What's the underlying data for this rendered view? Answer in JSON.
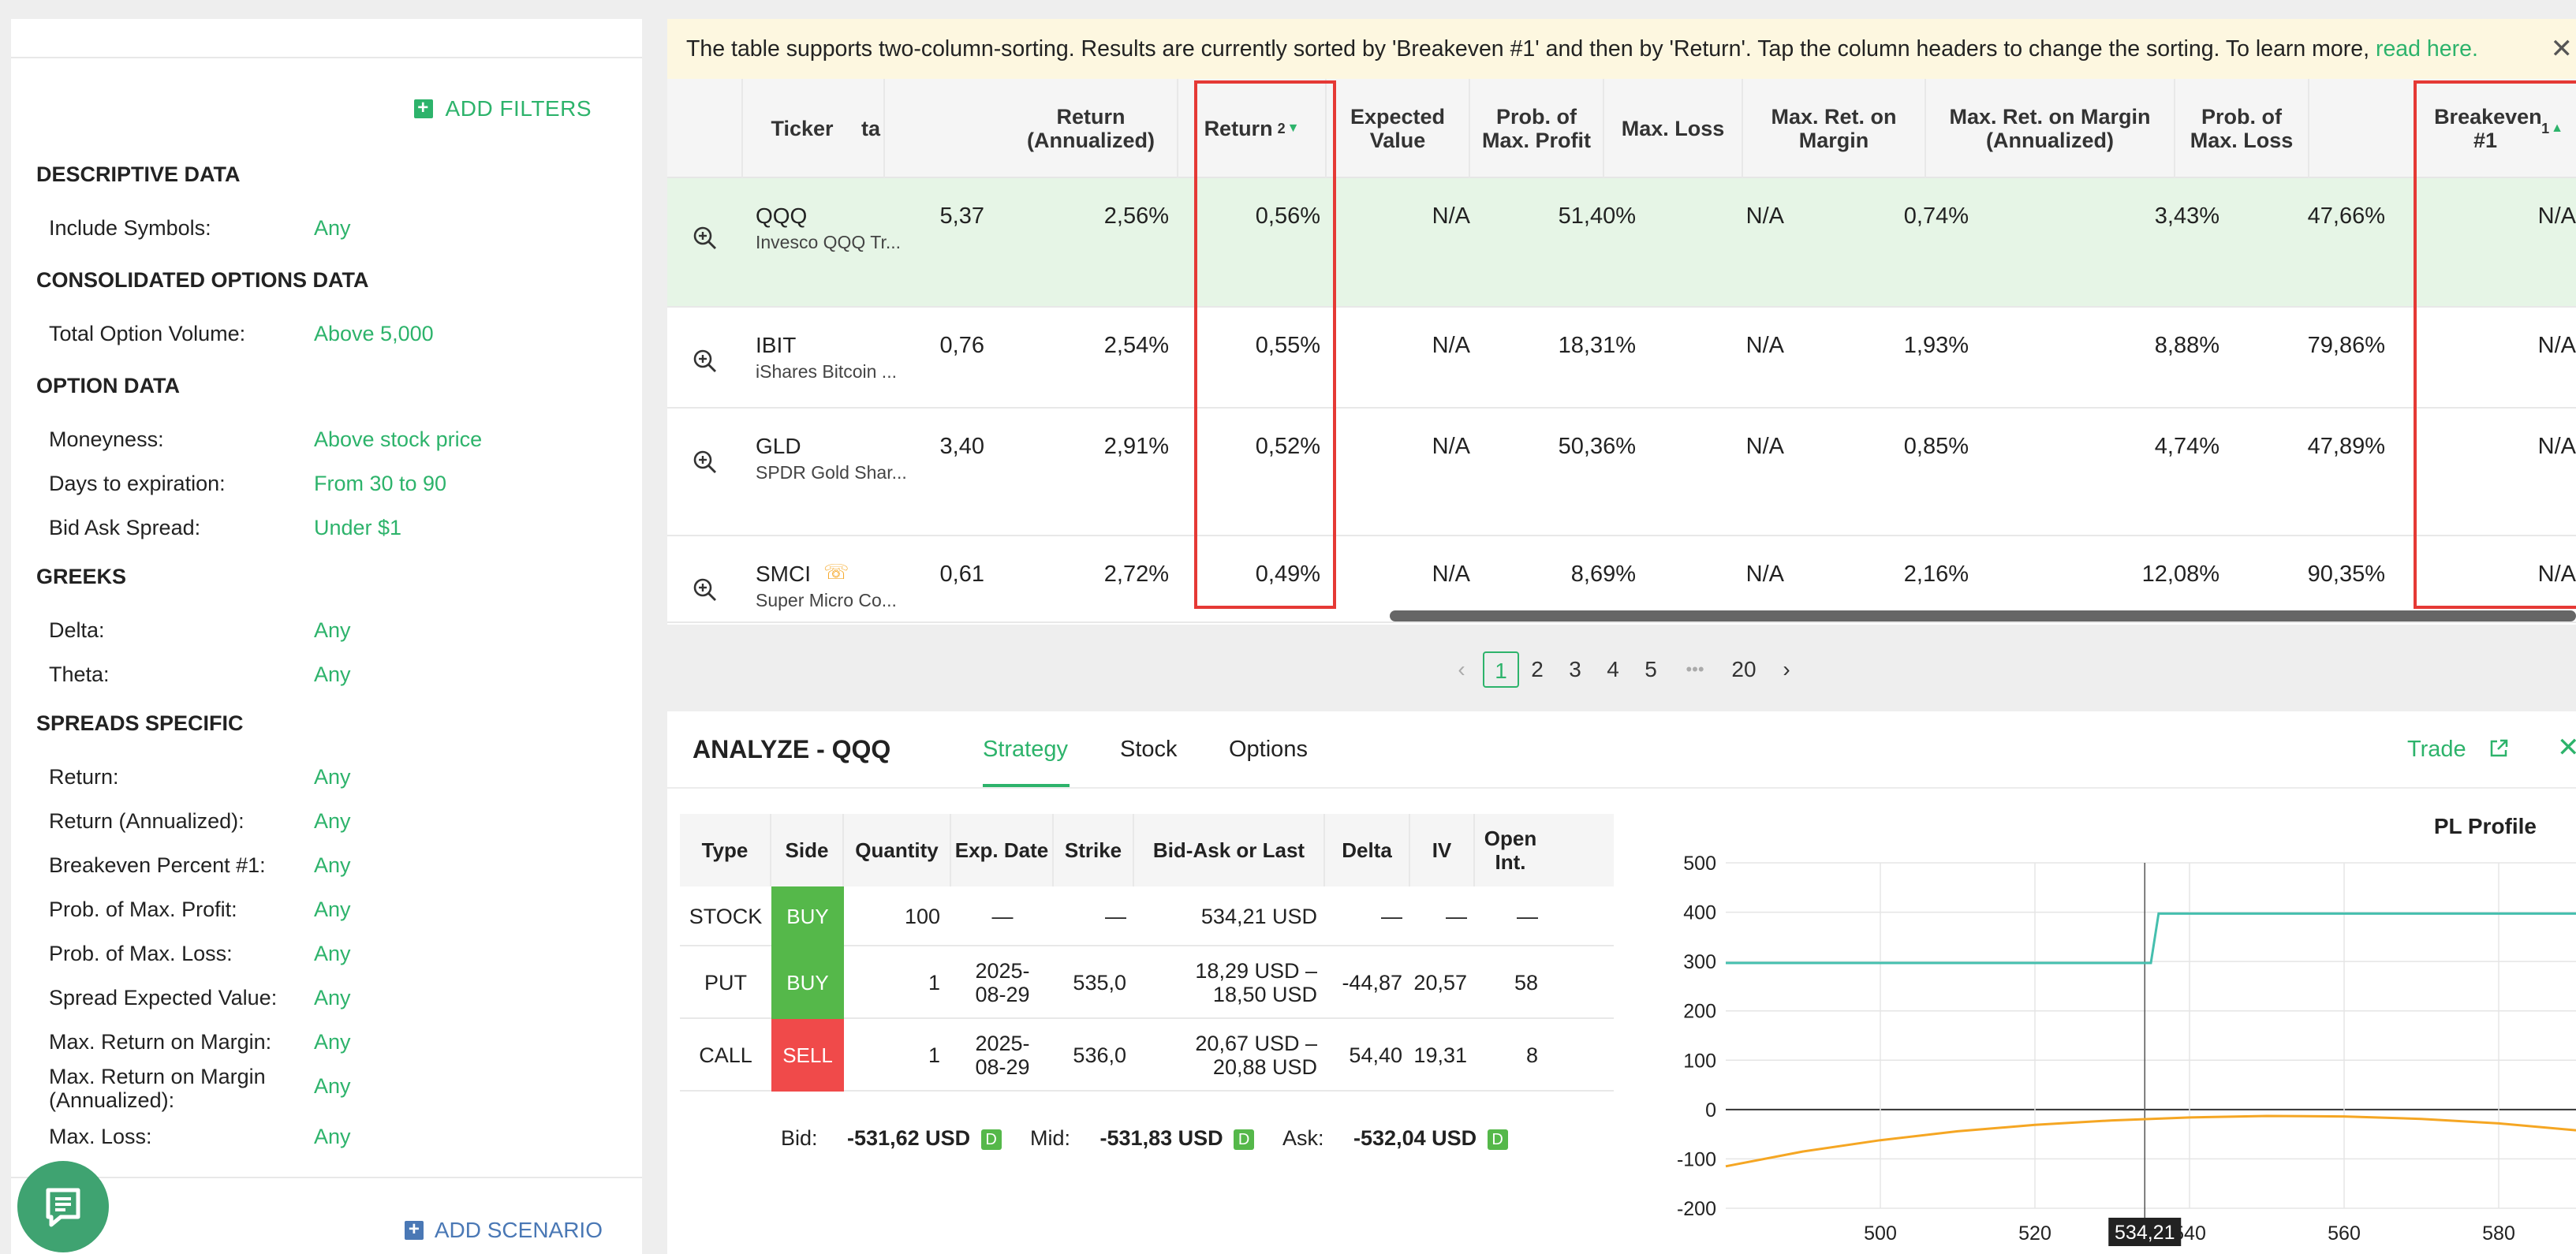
{
  "filters": {
    "add_filters": "ADD FILTERS",
    "add_scenario": "ADD SCENARIO",
    "sections": [
      {
        "title": "DESCRIPTIVE DATA",
        "rows": [
          {
            "label": "Include Symbols:",
            "value": "Any"
          }
        ]
      },
      {
        "title": "CONSOLIDATED OPTIONS DATA",
        "rows": [
          {
            "label": "Total Option Volume:",
            "value": "Above 5,000"
          }
        ]
      },
      {
        "title": "OPTION DATA",
        "rows": [
          {
            "label": "Moneyness:",
            "value": "Above stock price"
          },
          {
            "label": "Days to expiration:",
            "value": "From 30 to 90"
          },
          {
            "label": "Bid Ask Spread:",
            "value": "Under $1"
          }
        ]
      },
      {
        "title": "GREEKS",
        "rows": [
          {
            "label": "Delta:",
            "value": "Any"
          },
          {
            "label": "Theta:",
            "value": "Any"
          }
        ]
      },
      {
        "title": "SPREADS SPECIFIC",
        "rows": [
          {
            "label": "Return:",
            "value": "Any"
          },
          {
            "label": "Return (Annualized):",
            "value": "Any"
          },
          {
            "label": "Breakeven Percent #1:",
            "value": "Any"
          },
          {
            "label": "Prob. of Max. Profit:",
            "value": "Any"
          },
          {
            "label": "Prob. of Max. Loss:",
            "value": "Any"
          },
          {
            "label": "Spread Expected Value:",
            "value": "Any"
          },
          {
            "label": "Max. Return on Margin:",
            "value": "Any"
          },
          {
            "label": "Max. Return on Margin (Annualized):",
            "value": "Any"
          },
          {
            "label": "Max. Loss:",
            "value": "Any"
          }
        ]
      }
    ]
  },
  "notice": {
    "text": "The table supports two-column-sorting. Results are currently sorted by 'Breakeven #1' and then by 'Return'. Tap the column headers to change the sorting. To learn more,",
    "link": "read here.",
    "close": "✕"
  },
  "table": {
    "headers": {
      "ticker": "Ticker",
      "ta": "ta",
      "return_ann": "Return (Annualized)",
      "return": "Return",
      "return_sort": "2",
      "expected": "Expected Value",
      "prob_profit": "Prob. of Max. Profit",
      "max_loss": "Max. Loss",
      "max_ret_margin": "Max. Ret. on Margin",
      "max_ret_margin_ann": "Max. Ret. on Margin (Annualized)",
      "prob_loss": "Prob. of Max. Loss",
      "breakeven": "Breakeven #1",
      "breakeven_sort": "1"
    },
    "rows": [
      {
        "symbol": "QQQ",
        "name": "Invesco QQQ Tr...",
        "ta": "5,37",
        "return_ann": "2,56%",
        "return": "0,56%",
        "expected": "N/A",
        "prob_profit": "51,40%",
        "max_loss": "N/A",
        "max_ret_margin": "0,74%",
        "max_ret_margin_ann": "3,43%",
        "prob_loss": "47,66%",
        "breakeven": "N/A"
      },
      {
        "symbol": "IBIT",
        "name": "iShares Bitcoin ...",
        "ta": "0,76",
        "return_ann": "2,54%",
        "return": "0,55%",
        "expected": "N/A",
        "prob_profit": "18,31%",
        "max_loss": "N/A",
        "max_ret_margin": "1,93%",
        "max_ret_margin_ann": "8,88%",
        "prob_loss": "79,86%",
        "breakeven": "N/A"
      },
      {
        "symbol": "GLD",
        "name": "SPDR Gold Shar...",
        "ta": "3,40",
        "return_ann": "2,91%",
        "return": "0,52%",
        "expected": "N/A",
        "prob_profit": "50,36%",
        "max_loss": "N/A",
        "max_ret_margin": "0,85%",
        "max_ret_margin_ann": "4,74%",
        "prob_loss": "47,89%",
        "breakeven": "N/A"
      },
      {
        "symbol": "SMCI",
        "name": "Super Micro Co...",
        "ta": "0,61",
        "return_ann": "2,72%",
        "return": "0,49%",
        "expected": "N/A",
        "prob_profit": "8,69%",
        "max_loss": "N/A",
        "max_ret_margin": "2,16%",
        "max_ret_margin_ann": "12,08%",
        "prob_loss": "90,35%",
        "breakeven": "N/A"
      }
    ]
  },
  "pager": {
    "prev": "‹",
    "pages": [
      "1",
      "2",
      "3",
      "4",
      "5"
    ],
    "ellipsis": "•••",
    "last": "20",
    "next": "›",
    "current": "1"
  },
  "analyze": {
    "title": "ANALYZE - QQQ",
    "tabs": [
      "Strategy",
      "Stock",
      "Options"
    ],
    "active_tab": "Strategy",
    "trade": "Trade",
    "legs_headers": {
      "type": "Type",
      "side": "Side",
      "quantity": "Quantity",
      "exp": "Exp. Date",
      "strike": "Strike",
      "bidask": "Bid-Ask or Last",
      "delta": "Delta",
      "iv": "IV",
      "oi": "Open Int."
    },
    "legs": [
      {
        "type": "STOCK",
        "side": "BUY",
        "quantity": "100",
        "exp1": "—",
        "exp2": "",
        "strike": "—",
        "bidask1": "534,21 USD",
        "bidask2": "",
        "delta": "—",
        "iv": "—",
        "oi": "—"
      },
      {
        "type": "PUT",
        "side": "BUY",
        "quantity": "1",
        "exp1": "2025-",
        "exp2": "08-29",
        "strike": "535,0",
        "bidask1": "18,29 USD –",
        "bidask2": "18,50 USD",
        "delta": "-44,87",
        "iv": "20,57",
        "oi": "58"
      },
      {
        "type": "CALL",
        "side": "SELL",
        "quantity": "1",
        "exp1": "2025-",
        "exp2": "08-29",
        "strike": "536,0",
        "bidask1": "20,67 USD –",
        "bidask2": "20,88 USD",
        "delta": "54,40",
        "iv": "19,31",
        "oi": "8"
      }
    ],
    "bid_label": "Bid:",
    "bid": "-531,62 USD",
    "mid_label": "Mid:",
    "mid": "-531,83 USD",
    "ask_label": "Ask:",
    "ask": "-532,04 USD",
    "d": "D"
  },
  "chart_data": {
    "type": "line",
    "title": "PL Profile",
    "ylim": [
      -200,
      500
    ],
    "xlim": [
      480,
      590
    ],
    "yticks": [
      "500",
      "400",
      "300",
      "200",
      "100",
      "0",
      "-100",
      "-200"
    ],
    "xticks": [
      "500",
      "520",
      "540",
      "560",
      "580"
    ],
    "current_price_label": "534,21",
    "current_price": 534.21,
    "series": [
      {
        "color": "#45bfae",
        "x": [
          480,
          535,
          536,
          590
        ],
        "y": [
          297,
          297,
          397,
          397
        ]
      },
      {
        "color": "#f5a623",
        "x": [
          480,
          490,
          500,
          510,
          520,
          530,
          540,
          550,
          560,
          570,
          580,
          590
        ],
        "y": [
          -115,
          -85,
          -62,
          -44,
          -31,
          -22,
          -16,
          -13,
          -14,
          -19,
          -28,
          -42
        ]
      }
    ]
  }
}
